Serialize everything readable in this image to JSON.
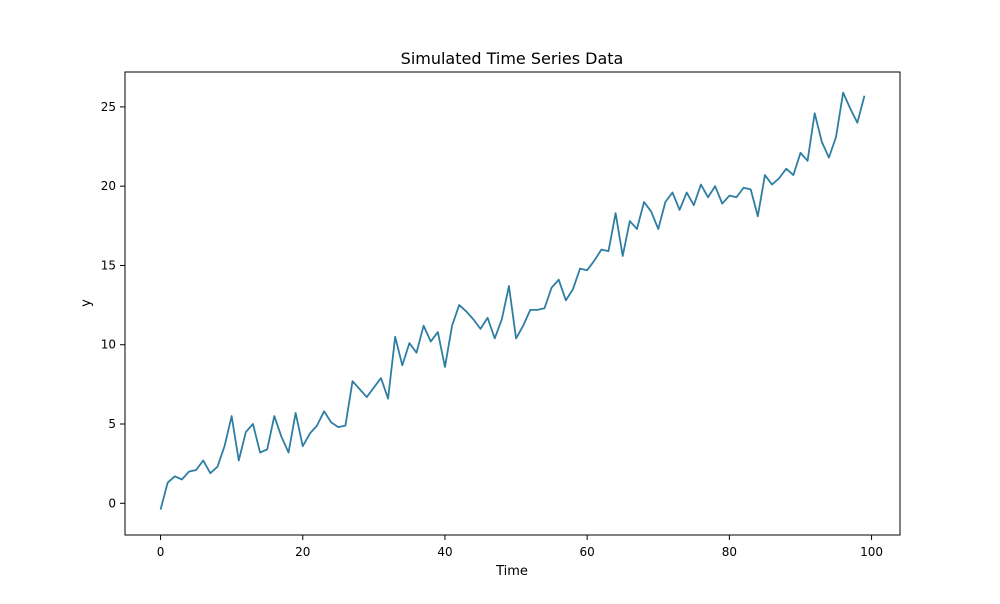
{
  "chart_data": {
    "type": "line",
    "title": "Simulated Time Series Data",
    "xlabel": "Time",
    "ylabel": "y",
    "xlim": [
      -5,
      104
    ],
    "ylim": [
      -2.0,
      27.2
    ],
    "xticks": [
      0,
      20,
      40,
      60,
      80,
      100
    ],
    "yticks": [
      0,
      5,
      10,
      15,
      20,
      25
    ],
    "grid": false,
    "line_color": "#2e7ea3",
    "series": [
      {
        "x": [
          0,
          1,
          2,
          3,
          4,
          5,
          6,
          7,
          8,
          9,
          10,
          11,
          12,
          13,
          14,
          15,
          16,
          17,
          18,
          19,
          20,
          21,
          22,
          23,
          24,
          25,
          26,
          27,
          28,
          29,
          30,
          31,
          32,
          33,
          34,
          35,
          36,
          37,
          38,
          39,
          40,
          41,
          42,
          43,
          44,
          45,
          46,
          47,
          48,
          49,
          50,
          51,
          52,
          53,
          54,
          55,
          56,
          57,
          58,
          59,
          60,
          61,
          62,
          63,
          64,
          65,
          66,
          67,
          68,
          69,
          70,
          71,
          72,
          73,
          74,
          75,
          76,
          77,
          78,
          79,
          80,
          81,
          82,
          83,
          84,
          85,
          86,
          87,
          88,
          89,
          90,
          91,
          92,
          93,
          94,
          95,
          96,
          97,
          98,
          99
        ],
        "values": [
          -0.4,
          1.3,
          1.7,
          1.5,
          2.0,
          2.1,
          2.7,
          1.9,
          2.3,
          3.6,
          5.5,
          2.7,
          4.5,
          5.0,
          3.2,
          3.4,
          5.5,
          4.2,
          3.2,
          5.7,
          3.6,
          4.4,
          4.9,
          5.8,
          5.1,
          4.8,
          4.9,
          7.7,
          7.2,
          6.7,
          7.3,
          7.9,
          6.6,
          10.5,
          8.7,
          10.1,
          9.5,
          11.2,
          10.2,
          10.8,
          8.6,
          11.2,
          12.5,
          12.1,
          11.6,
          11.0,
          11.7,
          10.4,
          11.6,
          13.7,
          10.4,
          11.2,
          12.2,
          12.2,
          12.3,
          13.6,
          14.1,
          12.8,
          13.5,
          14.8,
          14.7,
          15.3,
          16.0,
          15.9,
          18.3,
          15.6,
          17.8,
          17.3,
          19.0,
          18.4,
          17.3,
          19.0,
          19.6,
          18.5,
          19.6,
          18.8,
          20.1,
          19.3,
          20.0,
          18.9,
          19.4,
          19.3,
          19.9,
          19.8,
          18.1,
          20.7,
          20.1,
          20.5,
          21.1,
          20.7,
          22.1,
          21.6,
          24.6,
          22.8,
          21.8,
          23.1,
          25.9,
          24.9,
          24.0,
          25.7
        ]
      }
    ]
  }
}
